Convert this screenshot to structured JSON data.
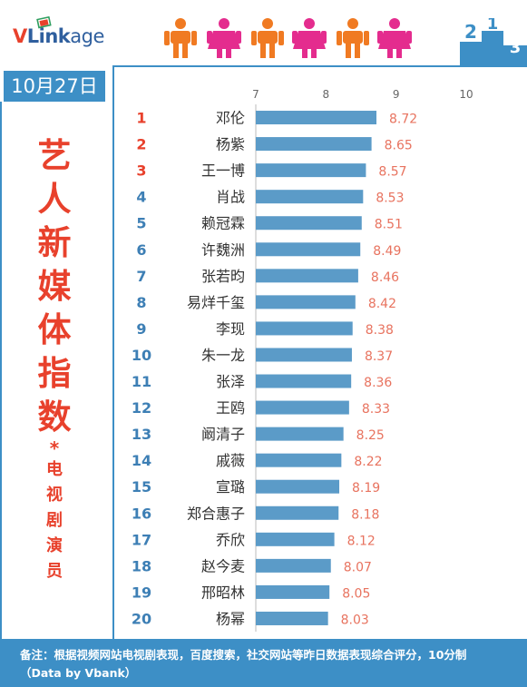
{
  "brand": {
    "logo_text_v": "V",
    "logo_text_link": "Link",
    "logo_text_age": "age"
  },
  "date_label": "10月27日",
  "title_chars": [
    "艺",
    "人",
    "新",
    "媒",
    "体",
    "指",
    "数"
  ],
  "title_star": "*",
  "subtitle_chars": [
    "电",
    "视",
    "剧",
    "演",
    "员"
  ],
  "footer": {
    "line1": "备注：根据视频网站电视剧表现，百度搜索，社交网站等昨日数据表现综合评分，10分制",
    "line2": "（Data by Vbank）"
  },
  "colors": {
    "accent_blue": "#3d8fc6",
    "bar_blue": "#5b9bc8",
    "rank_top3": "#e8412c",
    "rank_other": "#3d7fb5",
    "value_label": "#e8735f"
  },
  "chart_data": {
    "type": "bar",
    "orientation": "horizontal",
    "title": "",
    "xlabel": "",
    "ylabel": "",
    "xlim": [
      7,
      10
    ],
    "xticks": [
      7,
      8,
      9,
      10
    ],
    "grid": false,
    "legend": "none",
    "ranks": [
      1,
      2,
      3,
      4,
      5,
      6,
      7,
      8,
      9,
      10,
      11,
      12,
      13,
      14,
      15,
      16,
      17,
      18,
      19,
      20
    ],
    "categories": [
      "邓伦",
      "杨紫",
      "王一博",
      "肖战",
      "赖冠霖",
      "许魏洲",
      "张若昀",
      "易烊千玺",
      "李现",
      "朱一龙",
      "张泽",
      "王鸥",
      "阚清子",
      "戚薇",
      "宣璐",
      "郑合惠子",
      "乔欣",
      "赵今麦",
      "邢昭林",
      "杨幂"
    ],
    "values": [
      8.72,
      8.65,
      8.57,
      8.53,
      8.51,
      8.49,
      8.46,
      8.42,
      8.38,
      8.37,
      8.36,
      8.33,
      8.25,
      8.22,
      8.19,
      8.18,
      8.12,
      8.07,
      8.05,
      8.03
    ]
  }
}
